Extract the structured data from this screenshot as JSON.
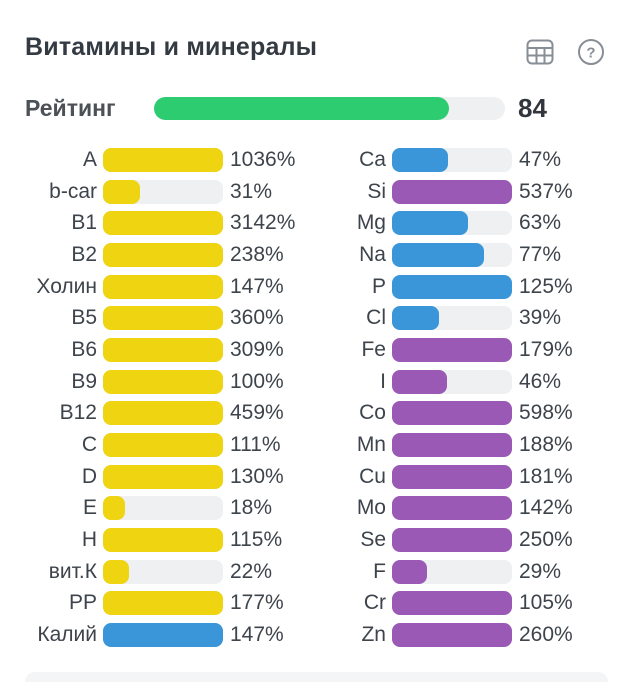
{
  "header": {
    "title": "Витамины и минералы",
    "table_icon": "table-grid-icon",
    "help_icon": "question-circle-icon"
  },
  "rating": {
    "label": "Рейтинг",
    "value": 84,
    "display": "84",
    "max": 100
  },
  "colors": {
    "yellow": "#efd411",
    "blue": "#3a96d8",
    "purple": "#9b59b6",
    "green": "#2ecc71",
    "track": "#eef0f2",
    "icon_gray": "#878e96",
    "text_dark": "#3e444b",
    "title_dark": "#333a42"
  },
  "chart_data": {
    "type": "bar",
    "orientation": "horizontal",
    "title": "Витамины и минералы",
    "unit": "% of daily norm",
    "bar_scale_max": 100,
    "legend_position": "none",
    "grid": false,
    "groups": [
      {
        "name": "vitamins-column",
        "rows": [
          {
            "label": "A",
            "value": 1036,
            "display": "1036%",
            "color": "yellow"
          },
          {
            "label": "b-car",
            "value": 31,
            "display": "31%",
            "color": "yellow"
          },
          {
            "label": "B1",
            "value": 3142,
            "display": "3142%",
            "color": "yellow"
          },
          {
            "label": "B2",
            "value": 238,
            "display": "238%",
            "color": "yellow"
          },
          {
            "label": "Холин",
            "value": 147,
            "display": "147%",
            "color": "yellow"
          },
          {
            "label": "B5",
            "value": 360,
            "display": "360%",
            "color": "yellow"
          },
          {
            "label": "B6",
            "value": 309,
            "display": "309%",
            "color": "yellow"
          },
          {
            "label": "B9",
            "value": 100,
            "display": "100%",
            "color": "yellow"
          },
          {
            "label": "B12",
            "value": 459,
            "display": "459%",
            "color": "yellow"
          },
          {
            "label": "C",
            "value": 111,
            "display": "111%",
            "color": "yellow"
          },
          {
            "label": "D",
            "value": 130,
            "display": "130%",
            "color": "yellow"
          },
          {
            "label": "E",
            "value": 18,
            "display": "18%",
            "color": "yellow"
          },
          {
            "label": "H",
            "value": 115,
            "display": "115%",
            "color": "yellow"
          },
          {
            "label": "вит.К",
            "value": 22,
            "display": "22%",
            "color": "yellow"
          },
          {
            "label": "PP",
            "value": 177,
            "display": "177%",
            "color": "yellow"
          },
          {
            "label": "Калий",
            "value": 147,
            "display": "147%",
            "color": "blue"
          }
        ]
      },
      {
        "name": "minerals-column",
        "rows": [
          {
            "label": "Ca",
            "value": 47,
            "display": "47%",
            "color": "blue"
          },
          {
            "label": "Si",
            "value": 537,
            "display": "537%",
            "color": "purple"
          },
          {
            "label": "Mg",
            "value": 63,
            "display": "63%",
            "color": "blue"
          },
          {
            "label": "Na",
            "value": 77,
            "display": "77%",
            "color": "blue"
          },
          {
            "label": "P",
            "value": 125,
            "display": "125%",
            "color": "blue"
          },
          {
            "label": "Cl",
            "value": 39,
            "display": "39%",
            "color": "blue"
          },
          {
            "label": "Fe",
            "value": 179,
            "display": "179%",
            "color": "purple"
          },
          {
            "label": "I",
            "value": 46,
            "display": "46%",
            "color": "purple"
          },
          {
            "label": "Co",
            "value": 598,
            "display": "598%",
            "color": "purple"
          },
          {
            "label": "Mn",
            "value": 188,
            "display": "188%",
            "color": "purple"
          },
          {
            "label": "Cu",
            "value": 181,
            "display": "181%",
            "color": "purple"
          },
          {
            "label": "Mo",
            "value": 142,
            "display": "142%",
            "color": "purple"
          },
          {
            "label": "Se",
            "value": 250,
            "display": "250%",
            "color": "purple"
          },
          {
            "label": "F",
            "value": 29,
            "display": "29%",
            "color": "purple"
          },
          {
            "label": "Cr",
            "value": 105,
            "display": "105%",
            "color": "purple"
          },
          {
            "label": "Zn",
            "value": 260,
            "display": "260%",
            "color": "purple"
          }
        ]
      }
    ]
  }
}
